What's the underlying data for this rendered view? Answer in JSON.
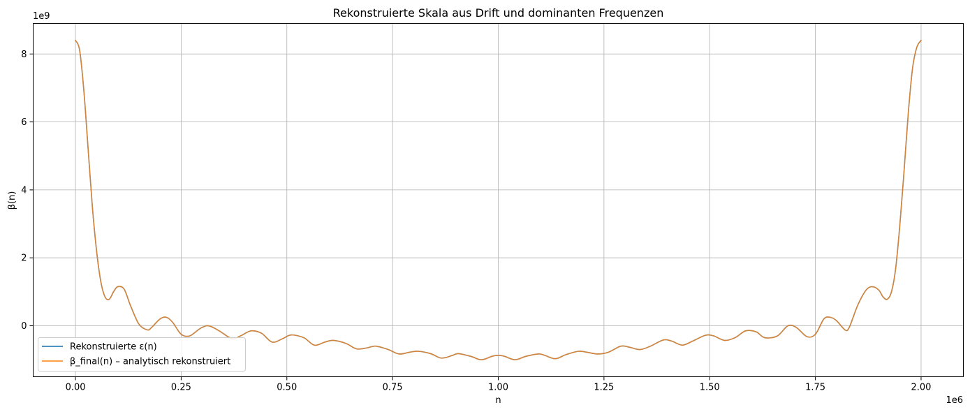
{
  "chart_data": {
    "type": "line",
    "title": "Rekonstruierte Skala aus Drift und dominanten Frequenzen",
    "xlabel": "n",
    "ylabel": "β(n)",
    "x_offset_label": "1e6",
    "y_offset_label": "1e9",
    "xlim": [
      -100000,
      2100000
    ],
    "ylim": [
      -1500000000.0,
      8900000000.0
    ],
    "x_ticks": [
      0,
      250000,
      500000,
      750000,
      1000000,
      1250000,
      1500000,
      1750000,
      2000000
    ],
    "x_tick_labels": [
      "0.00",
      "0.25",
      "0.50",
      "0.75",
      "1.00",
      "1.25",
      "1.50",
      "1.75",
      "2.00"
    ],
    "y_ticks": [
      0,
      2000000000,
      4000000000,
      6000000000,
      8000000000
    ],
    "y_tick_labels": [
      "0",
      "2",
      "4",
      "6",
      "8"
    ],
    "grid": true,
    "legend_position": "lower-left",
    "series": [
      {
        "name": "Rekonstruierte ε(n)",
        "color": "#1f77b4",
        "x": [
          0,
          10000,
          20000,
          30000,
          40000,
          50000,
          60000,
          70000,
          80000,
          90000,
          100000,
          115000,
          130000,
          150000,
          170000,
          180000,
          200000,
          215000,
          230000,
          250000,
          270000,
          295000,
          315000,
          340000,
          370000,
          390000,
          415000,
          440000,
          465000,
          490000,
          510000,
          540000,
          565000,
          590000,
          610000,
          640000,
          665000,
          690000,
          710000,
          740000,
          765000,
          790000,
          810000,
          840000,
          865000,
          890000,
          905000,
          935000,
          960000,
          985000,
          1000000,
          1015000,
          1040000,
          1065000,
          1095000,
          1110000,
          1135000,
          1160000,
          1190000,
          1210000,
          1235000,
          1260000,
          1290000,
          1310000,
          1335000,
          1360000,
          1390000,
          1410000,
          1435000,
          1460000,
          1490000,
          1510000,
          1535000,
          1560000,
          1585000,
          1610000,
          1630000,
          1660000,
          1685000,
          1705000,
          1730000,
          1750000,
          1770000,
          1785000,
          1800000,
          1820000,
          1830000,
          1850000,
          1870000,
          1885000,
          1900000,
          1910000,
          1920000,
          1930000,
          1940000,
          1950000,
          1960000,
          1970000,
          1980000,
          1990000,
          2000000
        ],
        "y": [
          8400000000,
          8100000000,
          6900000000,
          5200000000,
          3500000000,
          2200000000,
          1300000000,
          850000000,
          780000000,
          1000000000,
          1150000000,
          1080000000,
          600000000,
          50000000,
          -120000000,
          -50000000,
          200000000,
          250000000,
          100000000,
          -250000000,
          -300000000,
          -80000000,
          0,
          -150000000,
          -380000000,
          -300000000,
          -150000000,
          -220000000,
          -480000000,
          -380000000,
          -270000000,
          -350000000,
          -570000000,
          -480000000,
          -430000000,
          -520000000,
          -680000000,
          -650000000,
          -600000000,
          -700000000,
          -830000000,
          -780000000,
          -750000000,
          -820000000,
          -950000000,
          -880000000,
          -820000000,
          -900000000,
          -1000000000,
          -900000000,
          -870000000,
          -900000000,
          -1000000000,
          -900000000,
          -830000000,
          -870000000,
          -970000000,
          -850000000,
          -750000000,
          -780000000,
          -830000000,
          -780000000,
          -600000000,
          -630000000,
          -700000000,
          -600000000,
          -420000000,
          -450000000,
          -570000000,
          -450000000,
          -280000000,
          -300000000,
          -430000000,
          -350000000,
          -150000000,
          -180000000,
          -350000000,
          -300000000,
          0,
          -50000000,
          -320000000,
          -250000000,
          200000000,
          250000000,
          150000000,
          -120000000,
          -50000000,
          600000000,
          1050000000,
          1150000000,
          1050000000,
          850000000,
          780000000,
          1000000000,
          1700000000,
          3000000000,
          4600000000,
          6300000000,
          7600000000,
          8200000000,
          8400000000
        ]
      },
      {
        "name": "β_final(n) – analytisch rekonstruiert",
        "color": "#ff7f0e",
        "x": [
          0,
          10000,
          20000,
          30000,
          40000,
          50000,
          60000,
          70000,
          80000,
          90000,
          100000,
          115000,
          130000,
          150000,
          170000,
          180000,
          200000,
          215000,
          230000,
          250000,
          270000,
          295000,
          315000,
          340000,
          370000,
          390000,
          415000,
          440000,
          465000,
          490000,
          510000,
          540000,
          565000,
          590000,
          610000,
          640000,
          665000,
          690000,
          710000,
          740000,
          765000,
          790000,
          810000,
          840000,
          865000,
          890000,
          905000,
          935000,
          960000,
          985000,
          1000000,
          1015000,
          1040000,
          1065000,
          1095000,
          1110000,
          1135000,
          1160000,
          1190000,
          1210000,
          1235000,
          1260000,
          1290000,
          1310000,
          1335000,
          1360000,
          1390000,
          1410000,
          1435000,
          1460000,
          1490000,
          1510000,
          1535000,
          1560000,
          1585000,
          1610000,
          1630000,
          1660000,
          1685000,
          1705000,
          1730000,
          1750000,
          1770000,
          1785000,
          1800000,
          1820000,
          1830000,
          1850000,
          1870000,
          1885000,
          1900000,
          1910000,
          1920000,
          1930000,
          1940000,
          1950000,
          1960000,
          1970000,
          1980000,
          1990000,
          2000000
        ],
        "y": [
          8400000000,
          8100000000,
          6900000000,
          5200000000,
          3500000000,
          2200000000,
          1300000000,
          850000000,
          780000000,
          1000000000,
          1150000000,
          1080000000,
          600000000,
          50000000,
          -120000000,
          -50000000,
          200000000,
          250000000,
          100000000,
          -250000000,
          -300000000,
          -80000000,
          0,
          -150000000,
          -380000000,
          -300000000,
          -150000000,
          -220000000,
          -480000000,
          -380000000,
          -270000000,
          -350000000,
          -570000000,
          -480000000,
          -430000000,
          -520000000,
          -680000000,
          -650000000,
          -600000000,
          -700000000,
          -830000000,
          -780000000,
          -750000000,
          -820000000,
          -950000000,
          -880000000,
          -820000000,
          -900000000,
          -1000000000,
          -900000000,
          -870000000,
          -900000000,
          -1000000000,
          -900000000,
          -830000000,
          -870000000,
          -970000000,
          -850000000,
          -750000000,
          -780000000,
          -830000000,
          -780000000,
          -600000000,
          -630000000,
          -700000000,
          -600000000,
          -420000000,
          -450000000,
          -570000000,
          -450000000,
          -280000000,
          -300000000,
          -430000000,
          -350000000,
          -150000000,
          -180000000,
          -350000000,
          -300000000,
          0,
          -50000000,
          -320000000,
          -250000000,
          200000000,
          250000000,
          150000000,
          -120000000,
          -50000000,
          600000000,
          1050000000,
          1150000000,
          1050000000,
          850000000,
          780000000,
          1000000000,
          1700000000,
          3000000000,
          4600000000,
          6300000000,
          7600000000,
          8200000000,
          8400000000
        ]
      }
    ]
  }
}
